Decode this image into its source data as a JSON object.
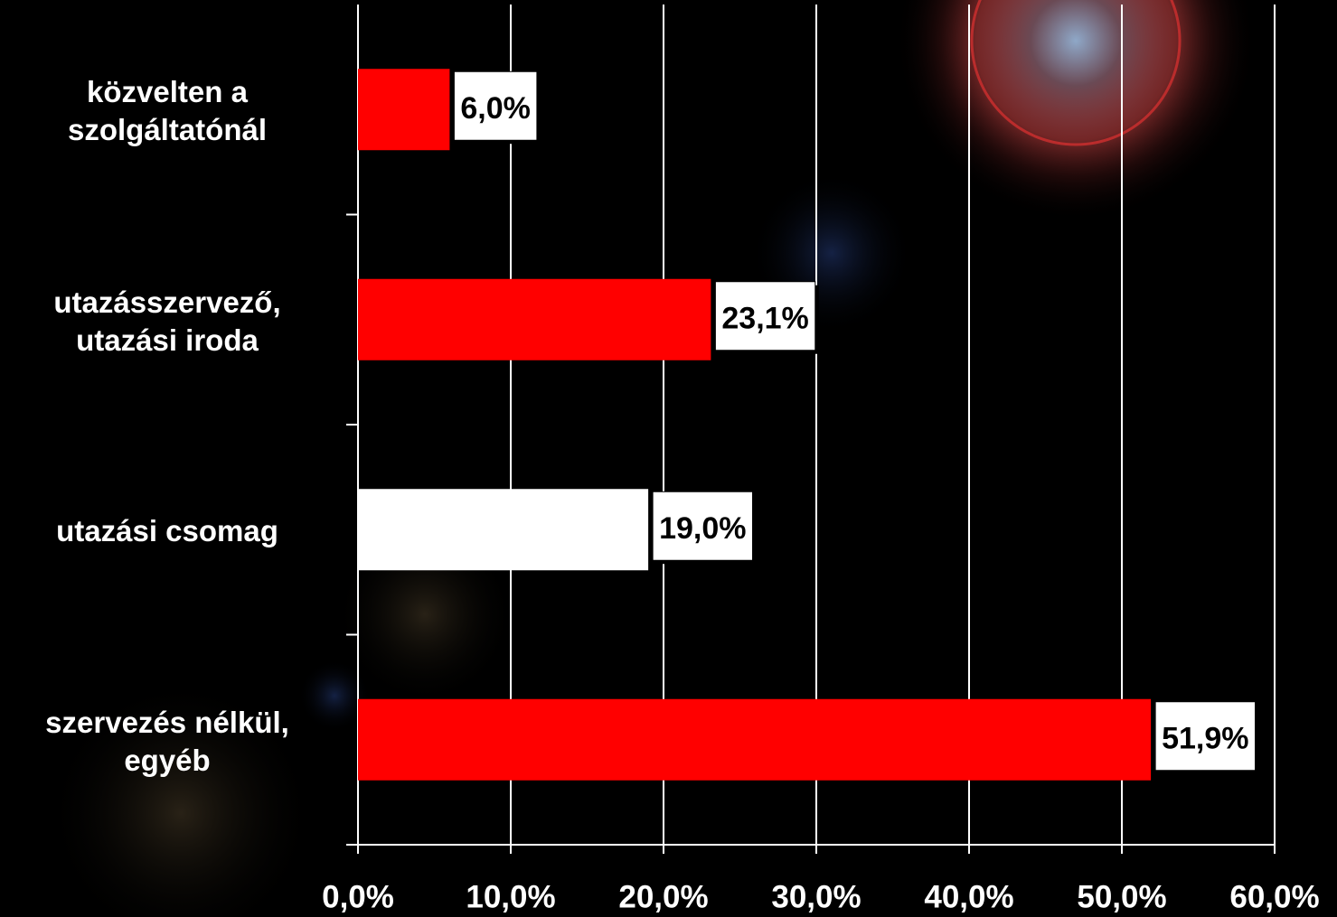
{
  "chart_data": {
    "type": "hbar",
    "categories": [
      "közvelten a\nszolgáltatónál",
      "utazásszervező,\nutazási iroda",
      "utazási csomag",
      "szervezés nélkül,\negyéb"
    ],
    "values": [
      6.0,
      23.1,
      19.0,
      51.9
    ],
    "value_labels": [
      "6,0%",
      "23,1%",
      "19,0%",
      "51,9%"
    ],
    "colors": [
      "#ff0000",
      "#ff0000",
      "#ffffff",
      "#ff0000"
    ],
    "xlim": [
      0,
      60
    ],
    "xticks": [
      {
        "value": 0,
        "label": "0,0%"
      },
      {
        "value": 10,
        "label": "10,0%"
      },
      {
        "value": 20,
        "label": "20,0%"
      },
      {
        "value": 30,
        "label": "30,0%"
      },
      {
        "value": 40,
        "label": "40,0%"
      },
      {
        "value": 50,
        "label": "50,0%"
      },
      {
        "value": 60,
        "label": "60,0%"
      }
    ],
    "grid": true
  }
}
